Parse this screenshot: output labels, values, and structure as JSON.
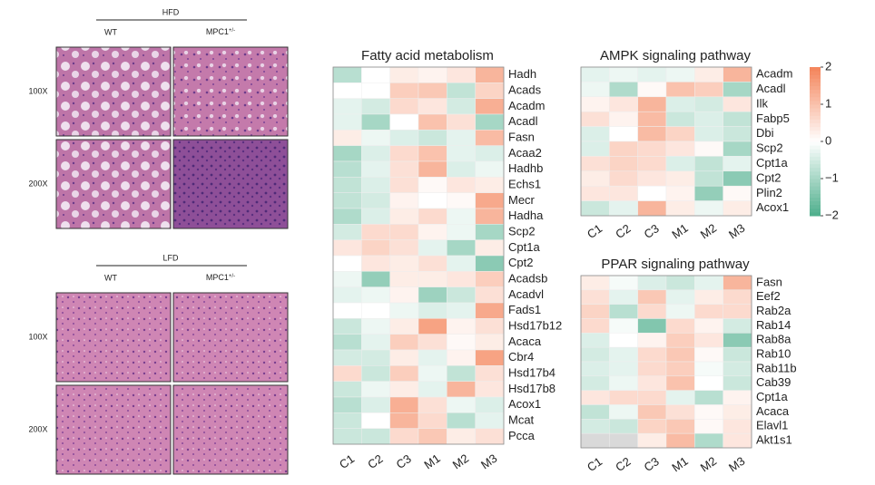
{
  "histology": {
    "groups": [
      {
        "title": "HFD",
        "wt": "WT",
        "ko": {
          "text": "MPC1",
          "sup": "+/-"
        },
        "rows": [
          "100X",
          "200X"
        ]
      },
      {
        "title": "LFD",
        "wt": "WT",
        "ko": {
          "text": "MPC1",
          "sup": "+/-"
        },
        "rows": [
          "100X",
          "200X"
        ]
      }
    ]
  },
  "chart_data": [
    {
      "type": "heatmap",
      "title": "Fatty acid metabolism",
      "columns": [
        "C1",
        "C2",
        "C3",
        "M1",
        "M2",
        "M3"
      ],
      "rows": [
        "Hadh",
        "Acads",
        "Acadm",
        "Acadl",
        "Fasn",
        "Acaa2",
        "Hadhb",
        "Echs1",
        "Mecr",
        "Hadha",
        "Scp2",
        "Cpt1a",
        "Cpt2",
        "Acadsb",
        "Acadvl",
        "Fads1",
        "Hsd17b12",
        "Acaca",
        "Cbr4",
        "Hsd17b4",
        "Hsd17b8",
        "Acox1",
        "Mcat",
        "Pcca"
      ],
      "values": [
        [
          -0.8,
          0,
          0.3,
          0.2,
          0.4,
          1.2
        ],
        [
          0,
          0,
          0.8,
          0.9,
          -0.7,
          0.7
        ],
        [
          -0.3,
          -0.5,
          0.6,
          0.4,
          -0.5,
          1.3
        ],
        [
          -0.3,
          -1,
          0,
          1,
          0.5,
          -1
        ],
        [
          0.3,
          -0.2,
          -0.4,
          -0.6,
          -0.3,
          1.1
        ],
        [
          -1,
          -0.4,
          0.6,
          1,
          -0.3,
          -0.4
        ],
        [
          -0.8,
          -0.3,
          0.5,
          1.2,
          -0.4,
          -0.2
        ],
        [
          -0.7,
          -0.4,
          0.5,
          0.1,
          0.4,
          0.3
        ],
        [
          -0.7,
          -0.5,
          0.2,
          0,
          0.1,
          1.4
        ],
        [
          -0.9,
          -0.4,
          0.3,
          0.6,
          -0.2,
          1.2
        ],
        [
          -0.5,
          0.6,
          0.6,
          0.2,
          -0.2,
          -1
        ],
        [
          0.4,
          0.7,
          0.5,
          -0.3,
          -1,
          0.3
        ],
        [
          0,
          0.4,
          0.3,
          0.5,
          -0.3,
          -1.3
        ],
        [
          -0.2,
          -1.2,
          0.3,
          0.3,
          0.4,
          0.8
        ],
        [
          -0.3,
          -0.2,
          0.2,
          -1.1,
          -0.6,
          0.5
        ],
        [
          0,
          0,
          -0.2,
          -0.4,
          -0.3,
          1.4
        ],
        [
          -0.6,
          -0.2,
          0.3,
          1.5,
          0.2,
          0.5
        ],
        [
          -0.8,
          -0.3,
          0.8,
          0.5,
          0.1,
          0.3
        ],
        [
          -0.5,
          -0.5,
          0.3,
          -0.3,
          0.2,
          1.5
        ],
        [
          0.6,
          -0.6,
          0.8,
          -0.2,
          -0.7,
          0.5
        ],
        [
          -0.6,
          -0.2,
          0.3,
          -0.3,
          1.2,
          0.4
        ],
        [
          -0.8,
          -0.4,
          1.3,
          0.5,
          -0.2,
          -0.4
        ],
        [
          -0.6,
          0,
          1.2,
          0.6,
          -0.8,
          -0.3
        ],
        [
          -0.6,
          -0.6,
          0.6,
          0.9,
          0.3,
          0.5
        ]
      ]
    },
    {
      "type": "heatmap",
      "title": "AMPK signaling pathway",
      "columns": [
        "C1",
        "C2",
        "C3",
        "M1",
        "M2",
        "M3"
      ],
      "rows": [
        "Acadm",
        "Acadl",
        "Ilk",
        "Fabp5",
        "Dbi",
        "Scp2",
        "Cpt1a",
        "Cpt2",
        "Plin2",
        "Acox1"
      ],
      "values": [
        [
          -0.3,
          -0.2,
          -0.3,
          -0.2,
          0.3,
          1.2
        ],
        [
          -0.2,
          -0.9,
          0.1,
          1,
          0.8,
          -1
        ],
        [
          0.2,
          0.4,
          1.2,
          -0.4,
          -0.5,
          0.4
        ],
        [
          0.5,
          0.2,
          1.1,
          -0.6,
          -0.4,
          -0.7
        ],
        [
          -0.4,
          0,
          1.1,
          0.7,
          -0.4,
          -0.6
        ],
        [
          -0.4,
          0.7,
          0.6,
          0.4,
          0.1,
          -1
        ],
        [
          0.5,
          0.7,
          0.6,
          -0.4,
          -0.7,
          -0.3
        ],
        [
          0.3,
          0.6,
          0.4,
          0.3,
          -0.7,
          -1.3
        ],
        [
          0.4,
          0.4,
          0,
          0.2,
          -1.2,
          0.1
        ],
        [
          -0.6,
          -0.3,
          1.2,
          0.3,
          -0.2,
          0.3
        ]
      ],
      "colorbar": {
        "lim": [
          -2,
          2
        ],
        "ticks": [
          2,
          1,
          0,
          {
            "value": -1,
            "label": "−1"
          },
          {
            "value": -2,
            "label": "−2"
          }
        ],
        "colors": [
          "#4dae8b",
          "#ffffff",
          "#f4845a"
        ]
      }
    },
    {
      "type": "heatmap",
      "title": "PPAR signaling pathway",
      "columns": [
        "C1",
        "C2",
        "C3",
        "M1",
        "M2",
        "M3"
      ],
      "rows": [
        "Fasn",
        "Eef2",
        "Rab2a",
        "Rab14",
        "Rab8a",
        "Rab10",
        "Rab11b",
        "Cab39",
        "Cpt1a",
        "Acaca",
        "Elavl1",
        "Akt1s1"
      ],
      "values": [
        [
          0.3,
          -0.1,
          -0.4,
          -0.6,
          -0.3,
          1.2
        ],
        [
          0.5,
          -0.3,
          0.9,
          -0.3,
          0.3,
          0.6
        ],
        [
          0.7,
          -0.8,
          0.6,
          -0.2,
          0.6,
          0.6
        ],
        [
          0.6,
          -0.1,
          -1.4,
          0.6,
          0.2,
          -0.5
        ],
        [
          -0.4,
          0,
          0.2,
          0.8,
          0.4,
          -1.3
        ],
        [
          -0.5,
          -0.3,
          0.6,
          0.9,
          0.1,
          -0.6
        ],
        [
          -0.4,
          -0.3,
          0.6,
          0.8,
          -0.1,
          -0.5
        ],
        [
          -0.5,
          -0.2,
          0.4,
          1,
          0,
          -0.6
        ],
        [
          0.4,
          0.6,
          0.6,
          -0.3,
          -0.8,
          0.2
        ],
        [
          -0.7,
          -0.2,
          0.9,
          0.5,
          0.1,
          0.3
        ],
        [
          -0.5,
          -0.6,
          0.7,
          0.9,
          0.1,
          0.4
        ],
        [
          null,
          null,
          0.3,
          1.1,
          -0.9,
          0.4
        ]
      ],
      "na_color": "#d9d9d9"
    }
  ]
}
